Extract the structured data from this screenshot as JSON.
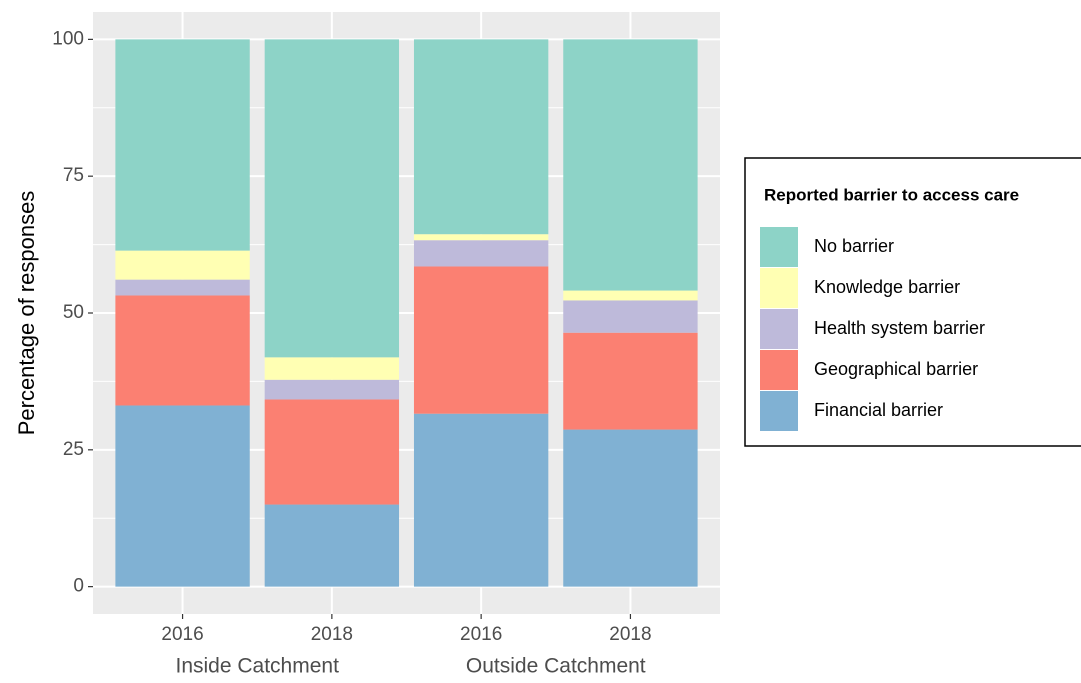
{
  "chart_data": {
    "type": "stacked_bar",
    "y_label": "Percentage of responses",
    "categories": [
      "2016",
      "2018",
      "2016",
      "2018"
    ],
    "groups": [
      "Inside Catchment",
      "Inside Catchment",
      "Outside Catchment",
      "Outside Catchment"
    ],
    "series": [
      {
        "name": "Financial barrier",
        "color": "#80b1d3",
        "values": [
          33.1,
          15,
          31.6,
          28.7
        ]
      },
      {
        "name": "Geographical barrier",
        "color": "#fb8072",
        "values": [
          20.1,
          19.2,
          26.9,
          17.7
        ]
      },
      {
        "name": "Health system barrier",
        "color": "#bebada",
        "values": [
          2.9,
          3.6,
          4.8,
          5.9
        ]
      },
      {
        "name": "Knowledge barrier",
        "color": "#ffffb3",
        "values": [
          5.3,
          4.1,
          1.1,
          1.8
        ]
      },
      {
        "name": "No barrier",
        "color": "#8dd3c7",
        "values": [
          38.6,
          58.1,
          35.6,
          45.9
        ]
      }
    ],
    "legend_title": "Reported barrier to access care",
    "legend": "right",
    "ylim": [
      -5,
      105
    ],
    "yticks": [
      0,
      25,
      50,
      75,
      100
    ],
    "grid": true
  }
}
